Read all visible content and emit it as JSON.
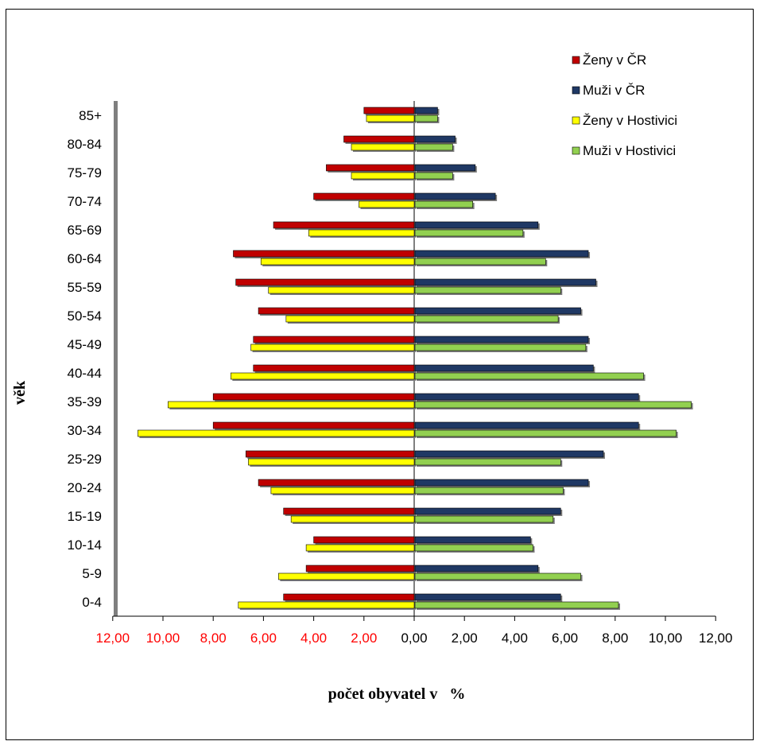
{
  "chart_data": {
    "type": "bar",
    "orientation": "horizontal",
    "title": "",
    "xlabel": "počet obyvatel v   %",
    "ylabel": "věk",
    "categories": [
      "0-4",
      "5-9",
      "10-14",
      "15-19",
      "20-24",
      "25-29",
      "30-34",
      "35-39",
      "40-44",
      "45-49",
      "50-54",
      "55-59",
      "60-64",
      "65-69",
      "70-74",
      "75-79",
      "80-84",
      "85+"
    ],
    "xlim": [
      -12,
      12
    ],
    "x_ticks": [
      -12,
      -10,
      -8,
      -6,
      -4,
      -2,
      0,
      2,
      4,
      6,
      8,
      10,
      12
    ],
    "x_tick_labels": [
      "12,00",
      "10,00",
      "8,00",
      "6,00",
      "4,00",
      "2,00",
      "0,00",
      "2,00",
      "4,00",
      "6,00",
      "8,00",
      "10,00",
      "12,00"
    ],
    "x_tick_label_colors": {
      "negative": "#ff0000",
      "positive": "#000000"
    },
    "grid": false,
    "legend_position": "top-right",
    "series": [
      {
        "name": "Ženy v ČR",
        "color": "#c00000",
        "side": "left",
        "values": [
          5.2,
          4.3,
          4.0,
          5.2,
          6.2,
          6.7,
          8.0,
          8.0,
          6.4,
          6.4,
          6.2,
          7.1,
          7.2,
          5.6,
          4.0,
          3.5,
          2.8,
          2.0
        ]
      },
      {
        "name": "Muži v ČR",
        "color": "#1f3864",
        "side": "right",
        "values": [
          5.8,
          4.9,
          4.6,
          5.8,
          6.9,
          7.5,
          8.9,
          8.9,
          7.1,
          6.9,
          6.6,
          7.2,
          6.9,
          4.9,
          3.2,
          2.4,
          1.6,
          0.9
        ]
      },
      {
        "name": "Ženy v Hostivici",
        "color": "#ffff00",
        "side": "left",
        "values": [
          7.0,
          5.4,
          4.3,
          4.9,
          5.7,
          6.6,
          11.0,
          9.8,
          7.3,
          6.5,
          5.1,
          5.8,
          6.1,
          4.2,
          2.2,
          2.5,
          2.5,
          1.9
        ]
      },
      {
        "name": "Muži v Hostivici",
        "color": "#92d050",
        "side": "right",
        "values": [
          8.1,
          6.6,
          4.7,
          5.5,
          5.9,
          5.8,
          10.4,
          11.0,
          9.1,
          6.8,
          5.7,
          5.8,
          5.2,
          4.3,
          2.3,
          1.5,
          1.5,
          0.9
        ]
      }
    ]
  }
}
